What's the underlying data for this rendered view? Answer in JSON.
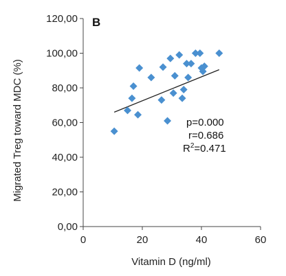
{
  "chart_data": {
    "type": "scatter",
    "panel_label": "B",
    "xlabel": "Vitamin D (ng/ml)",
    "ylabel": "Migrated Treg toward MDC (%)",
    "xlim": [
      0,
      60
    ],
    "ylim": [
      0,
      120
    ],
    "x_ticks": [
      "0",
      "20",
      "40",
      "60"
    ],
    "y_ticks": [
      "0,00",
      "20,00",
      "40,00",
      "60,00",
      "80,00",
      "100,00",
      "120,00"
    ],
    "series": [
      {
        "color": "#4a90d0",
        "points": [
          [
            10.5,
            55
          ],
          [
            15,
            67
          ],
          [
            16.5,
            74
          ],
          [
            17,
            81
          ],
          [
            18.5,
            64.5
          ],
          [
            19,
            91.5
          ],
          [
            23,
            86
          ],
          [
            26.5,
            73
          ],
          [
            27,
            92
          ],
          [
            28.5,
            61
          ],
          [
            29.5,
            97
          ],
          [
            30.5,
            77
          ],
          [
            31,
            87
          ],
          [
            32.5,
            99
          ],
          [
            33.5,
            74
          ],
          [
            34,
            79
          ],
          [
            35,
            94
          ],
          [
            35.5,
            86
          ],
          [
            36.5,
            94
          ],
          [
            38,
            100
          ],
          [
            39.5,
            100
          ],
          [
            40,
            91.5
          ],
          [
            40.5,
            89.5
          ],
          [
            41,
            92.5
          ],
          [
            46,
            100
          ]
        ]
      }
    ],
    "trendline": {
      "x": [
        10.5,
        46
      ],
      "y": [
        66,
        90.5
      ],
      "color": "#222222"
    },
    "annotations": {
      "p": "p=0.000",
      "r": "r=0.686",
      "r2_prefix": "R",
      "r2_sup": "2",
      "r2_value": "=0.471"
    }
  }
}
